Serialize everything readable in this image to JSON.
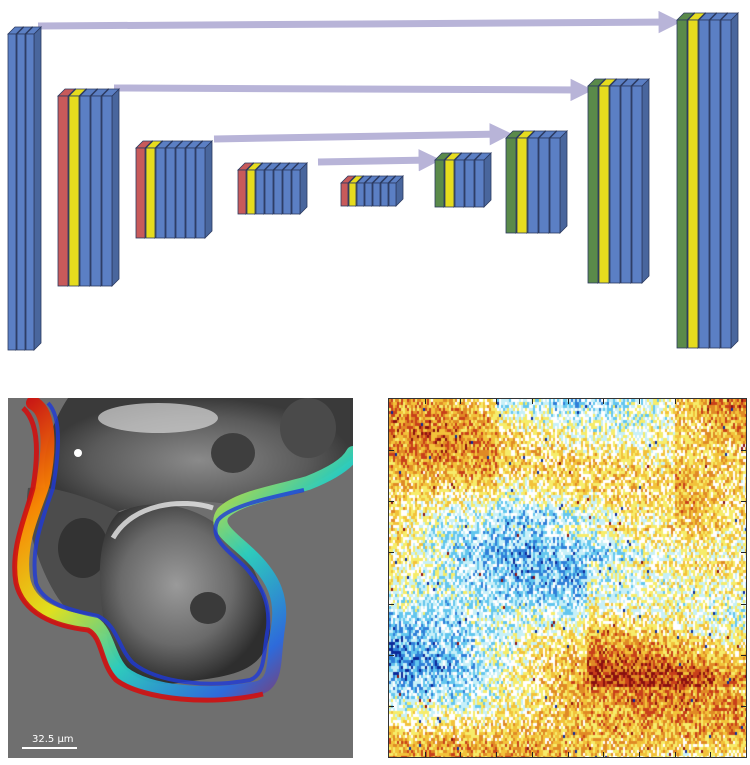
{
  "architecture": {
    "colors": {
      "conv": "#5b7fc4",
      "pool": "#c85a5a",
      "norm": "#e6dc1e",
      "upsample": "#5a8a4a",
      "skip": "#b8b4d8"
    },
    "encoder_stages": 5,
    "decoder_stages": 4
  },
  "cell_image": {
    "scale_label": "32.5 μm",
    "background": "#6f6f6f"
  },
  "heatmap": {
    "palette": [
      "#0b2a9a",
      "#2f7fd8",
      "#63c6ee",
      "#c7f0f8",
      "#ffffff",
      "#f6ec6a",
      "#f2c23a",
      "#e08a25",
      "#c8401a",
      "#8a1010"
    ]
  }
}
